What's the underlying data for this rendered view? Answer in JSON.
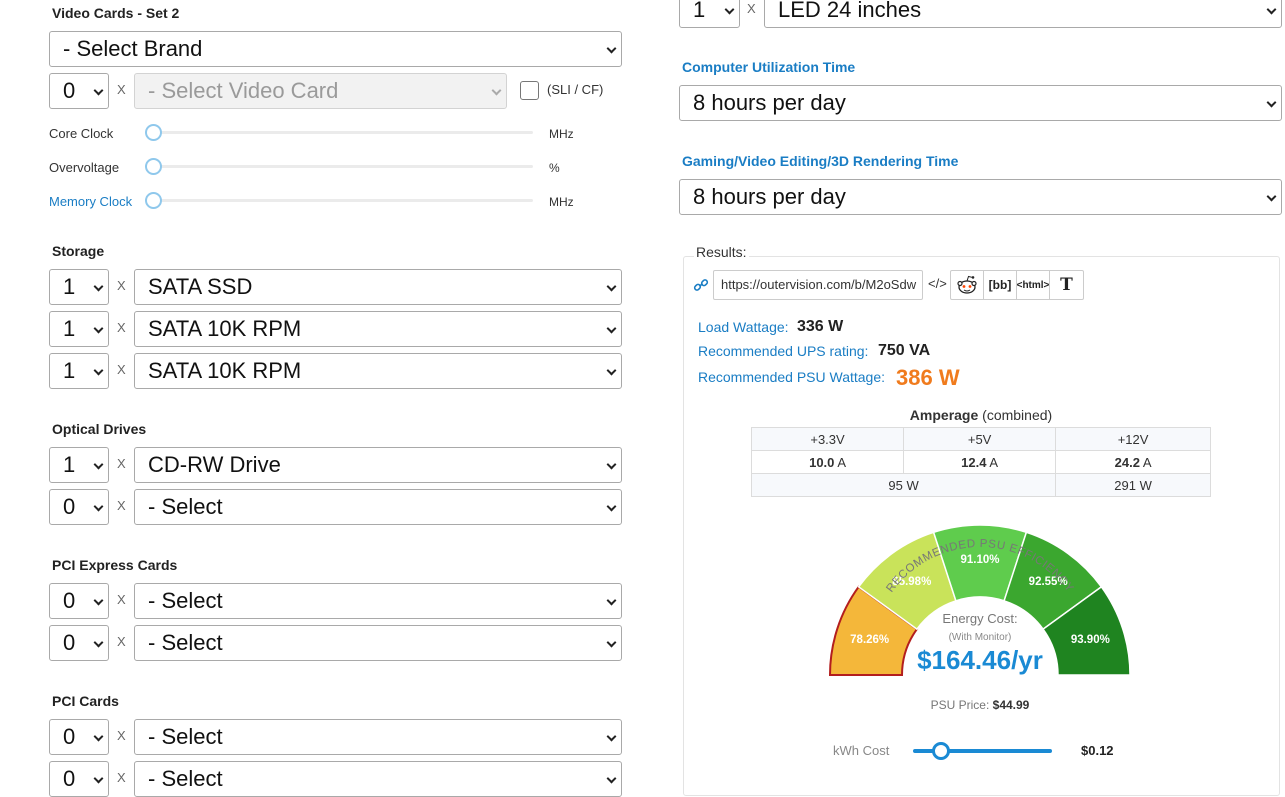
{
  "video_cards": {
    "title": "Video Cards - Set 2",
    "brand_select": "- Select Brand",
    "qty": "0",
    "card_select": "- Select Video Card",
    "sli_label": "(SLI / CF)",
    "sliders": [
      {
        "label": "Core Clock",
        "unit": "MHz",
        "value": 0
      },
      {
        "label": "Overvoltage",
        "unit": "%",
        "value": 0
      },
      {
        "label": "Memory Clock",
        "unit": "MHz",
        "value": 0
      }
    ]
  },
  "multiplier": "X",
  "storage": {
    "title": "Storage",
    "rows": [
      {
        "qty": "1",
        "item": "SATA SSD"
      },
      {
        "qty": "1",
        "item": "SATA 10K RPM"
      },
      {
        "qty": "1",
        "item": "SATA 10K RPM"
      }
    ]
  },
  "optical": {
    "title": "Optical Drives",
    "rows": [
      {
        "qty": "1",
        "item": "CD-RW Drive"
      },
      {
        "qty": "0",
        "item": "- Select"
      }
    ]
  },
  "pcie": {
    "title": "PCI Express Cards",
    "rows": [
      {
        "qty": "0",
        "item": "- Select"
      },
      {
        "qty": "0",
        "item": "- Select"
      }
    ]
  },
  "pci": {
    "title": "PCI Cards",
    "rows": [
      {
        "qty": "0",
        "item": "- Select"
      },
      {
        "qty": "0",
        "item": "- Select"
      }
    ]
  },
  "monitor": {
    "qty": "1",
    "item": "LED 24 inches"
  },
  "utilization": {
    "title": "Computer Utilization Time",
    "value": "8 hours per day"
  },
  "gaming": {
    "title": "Gaming/Video Editing/3D Rendering Time",
    "value": "8 hours per day"
  },
  "results": {
    "legend": "Results:",
    "url": "https://outervision.com/b/M2oSdw",
    "share_buttons": [
      "reddit-icon",
      "[bb]",
      "<html>",
      "T"
    ],
    "load_label": "Load Wattage:",
    "load_value": "336 W",
    "ups_label": "Recommended UPS rating:",
    "ups_value": "750 VA",
    "psu_label": "Recommended PSU Wattage:",
    "psu_value": "386 W",
    "amperage_title": "Amperage",
    "amperage_sub": "(combined)",
    "rails": [
      {
        "name": "+3.3V",
        "amps": "10.0",
        "unit": "A"
      },
      {
        "name": "+5V",
        "amps": "12.4",
        "unit": "A"
      },
      {
        "name": "+12V",
        "amps": "24.2",
        "unit": "A"
      }
    ],
    "watts_low": "95 W",
    "watts_12v": "291 W"
  },
  "efficiency": {
    "title": "RECOMMENDED PSU EFFICIENCY",
    "segments": [
      {
        "label": "78.26%",
        "color": "#f4b73a"
      },
      {
        "label": "85.98%",
        "color": "#c9e35a"
      },
      {
        "label": "91.10%",
        "color": "#5fcc4d"
      },
      {
        "label": "92.55%",
        "color": "#3ba72f"
      },
      {
        "label": "93.90%",
        "color": "#1f8420"
      }
    ],
    "energy_label": "Energy Cost:",
    "energy_sub": "(With Monitor)",
    "energy_value": "$164.46/yr",
    "psu_price_label": "PSU Price:",
    "psu_price_value": "$44.99",
    "kwh_label": "kWh Cost",
    "kwh_value": "$0.12",
    "kwh_position": 0.2
  }
}
